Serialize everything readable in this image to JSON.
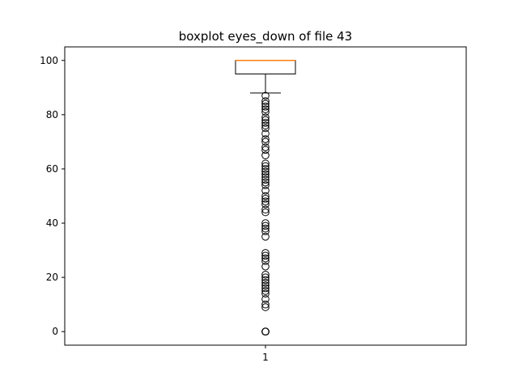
{
  "chart_data": {
    "type": "boxplot",
    "title": "boxplot eyes_down of file 43",
    "xlabel": "",
    "ylabel": "",
    "categories": [
      "1"
    ],
    "ylim": [
      -5,
      105
    ],
    "yticks": [
      0,
      20,
      40,
      60,
      80,
      100
    ],
    "grid": false,
    "box": {
      "whisker_low": 88,
      "q1": 95,
      "median": 100,
      "q3": 100,
      "whisker_high": 100
    },
    "outliers": [
      0,
      0,
      0,
      0,
      0,
      9,
      10,
      12,
      14,
      15,
      16,
      17,
      18,
      19,
      20,
      21,
      24,
      26,
      27,
      28,
      29,
      35,
      37,
      38,
      39,
      40,
      44,
      45,
      47,
      48,
      49,
      50,
      52,
      54,
      55,
      56,
      57,
      58,
      59,
      60,
      61,
      62,
      65,
      67,
      68,
      70,
      71,
      73,
      75,
      76,
      77,
      78,
      79,
      81,
      82,
      83,
      84,
      85,
      87
    ],
    "colors": {
      "box": "#000000",
      "median": "#ff7f0e",
      "outlier": "#000000"
    }
  }
}
